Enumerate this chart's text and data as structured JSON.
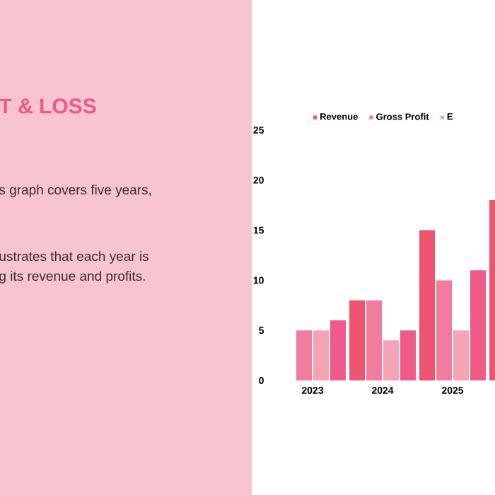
{
  "chart_data": {
    "type": "bar",
    "title": "T & LOSS",
    "annotations": [
      "s graph covers five years,",
      "ustrates that each year is",
      "g its revenue and profits."
    ],
    "categories": [
      "2023",
      "2024",
      "2025",
      null
    ],
    "series": [
      {
        "name": "Revenue",
        "color": "#ee5470",
        "values": [
          null,
          8,
          15,
          18
        ]
      },
      {
        "name": "Gross Profit",
        "color": "#f17ca0",
        "values": [
          5,
          8,
          10,
          null
        ]
      },
      {
        "name": "E",
        "color": "#f6a3b8",
        "values": [
          5,
          4,
          5,
          null
        ]
      },
      {
        "color": "#ef5a88",
        "values": [
          6,
          5,
          11,
          null
        ]
      }
    ],
    "ylim": [
      0,
      25
    ],
    "yticks": [
      0,
      5,
      10,
      15,
      20,
      25
    ],
    "legend": "top"
  }
}
